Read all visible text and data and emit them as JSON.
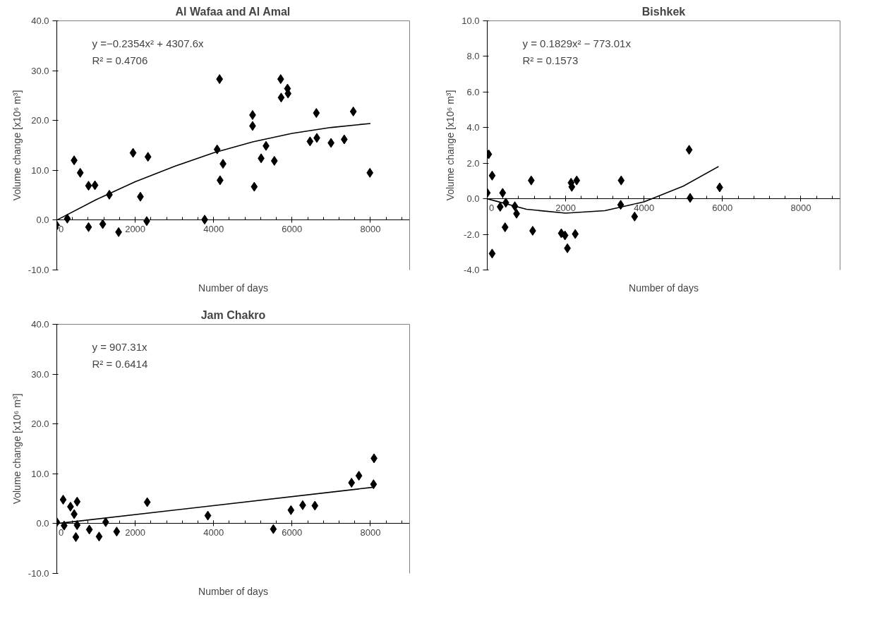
{
  "chart_data": [
    {
      "type": "scatter",
      "title": "Al Wafaa and Al Amal",
      "xlabel": "Number of days",
      "ylabel": "Volume change [x10⁶ m³]",
      "marker": "diamond",
      "xlim": [
        0,
        9000
      ],
      "xticks": [
        0,
        2000,
        4000,
        6000,
        8000
      ],
      "ylim": [
        -10,
        40
      ],
      "yticks": [
        {
          "value": -10,
          "label": "-10.0"
        },
        {
          "value": 0,
          "label": "0.0"
        },
        {
          "value": 10,
          "label": "10.0"
        },
        {
          "value": 20,
          "label": "20.0"
        },
        {
          "value": 30,
          "label": "30.0"
        },
        {
          "value": 40,
          "label": "40.0"
        }
      ],
      "annotations": [
        "y =−0.2354x² + 4307.6x",
        "R² = 0.4706"
      ],
      "series": [
        {
          "color": "#000000",
          "x": [
            0,
            268,
            442,
            598,
            810,
            973,
            810,
            1172,
            1340,
            1577,
            1945,
            2132,
            2326,
            2294,
            3772,
            4090,
            4152,
            4165,
            4240,
            4994,
            4994,
            5037,
            5212,
            5337,
            5549,
            5711,
            5723,
            5885,
            5898,
            6459,
            6621,
            6633,
            6995,
            7332,
            7563,
            7987
          ],
          "values": [
            -1.1,
            0.3,
            12.0,
            9.5,
            6.9,
            7.0,
            -1.4,
            -0.8,
            5.1,
            -2.4,
            13.5,
            4.7,
            12.7,
            -0.2,
            0.1,
            14.2,
            28.3,
            8.0,
            11.3,
            21.1,
            18.9,
            6.7,
            12.4,
            14.9,
            11.9,
            28.3,
            24.6,
            26.4,
            25.4,
            15.8,
            21.5,
            16.5,
            15.5,
            16.2,
            21.8,
            9.5
          ]
        },
        {
          "type": "line",
          "marker": "none",
          "color": "#000000",
          "x": [
            0,
            1000,
            2000,
            3000,
            4000,
            5000,
            6000,
            7000,
            8000
          ],
          "values": [
            0,
            4.1,
            7.7,
            10.8,
            13.5,
            15.7,
            17.4,
            18.6,
            19.4
          ]
        }
      ]
    },
    {
      "type": "scatter",
      "title": "Bishkek",
      "xlabel": "Number of days",
      "ylabel": "Volume change [x10⁶ m³]",
      "marker": "diamond",
      "xlim": [
        0,
        9000
      ],
      "xticks": [
        0,
        2000,
        4000,
        6000,
        8000
      ],
      "ylim": [
        -4,
        10
      ],
      "yticks": [
        {
          "value": -4,
          "label": "-4.0"
        },
        {
          "value": -2,
          "label": "-2.0"
        },
        {
          "value": 0,
          "label": "0.0"
        },
        {
          "value": 2,
          "label": "2.0"
        },
        {
          "value": 4,
          "label": "4.0"
        },
        {
          "value": 6,
          "label": "6.0"
        },
        {
          "value": 8,
          "label": "8.0"
        },
        {
          "value": 10,
          "label": "10.0"
        }
      ],
      "annotations": [
        "y = 0.1829x² − 773.01x",
        "R² = 0.1573"
      ],
      "series": [
        {
          "color": "#000000",
          "x": [
            37,
            125,
            0,
            393,
            330,
            474,
            455,
            704,
            748,
            1122,
            1159,
            1889,
            1983,
            2045,
            125,
            2138,
            2157,
            2282,
            2245,
            3416,
            3404,
            3759,
            5150,
            5175,
            5929
          ],
          "values": [
            2.5,
            1.3,
            0.33,
            0.33,
            -0.45,
            -0.22,
            -1.6,
            -0.42,
            -0.84,
            1.03,
            -1.8,
            -1.94,
            -2.06,
            -2.78,
            -3.08,
            0.9,
            0.67,
            1.03,
            -1.98,
            1.03,
            -0.34,
            -1.0,
            2.75,
            0.05,
            0.64
          ]
        },
        {
          "type": "line",
          "marker": "none",
          "color": "#000000",
          "x": [
            0,
            1000,
            2000,
            3000,
            4000,
            5000,
            5900
          ],
          "values": [
            0,
            -0.59,
            -0.81,
            -0.67,
            -0.17,
            0.71,
            1.81
          ]
        }
      ]
    },
    {
      "type": "scatter",
      "title": "Jam Chakro",
      "xlabel": "Number of days",
      "ylabel": "Volume change [x10⁶ m³]",
      "marker": "diamond",
      "xlim": [
        0,
        9000
      ],
      "xticks": [
        0,
        2000,
        4000,
        6000,
        8000
      ],
      "ylim": [
        -10,
        40
      ],
      "yticks": [
        {
          "value": -10,
          "label": "-10.0"
        },
        {
          "value": 0,
          "label": "0.0"
        },
        {
          "value": 10,
          "label": "10.0"
        },
        {
          "value": 20,
          "label": "20.0"
        },
        {
          "value": 30,
          "label": "30.0"
        },
        {
          "value": 40,
          "label": "40.0"
        }
      ],
      "annotations": [
        "y = 907.31x",
        "R² = 0.6414"
      ],
      "series": [
        {
          "color": "#000000",
          "x": [
            0,
            162,
            187,
            349,
            443,
            518,
            486,
            518,
            830,
            1079,
            1247,
            1527,
            2307,
            3853,
            5524,
            5973,
            6272,
            6584,
            7519,
            7706,
            8092,
            8080
          ],
          "values": [
            0.3,
            4.8,
            -0.4,
            3.4,
            1.9,
            4.4,
            -2.7,
            -0.3,
            -1.2,
            -2.6,
            0.3,
            -1.6,
            4.3,
            1.6,
            -1.1,
            2.7,
            3.7,
            3.6,
            8.2,
            9.6,
            13.1,
            7.9
          ]
        },
        {
          "type": "line",
          "marker": "none",
          "color": "#000000",
          "x": [
            0,
            8080
          ],
          "values": [
            0,
            7.3
          ]
        }
      ]
    }
  ]
}
